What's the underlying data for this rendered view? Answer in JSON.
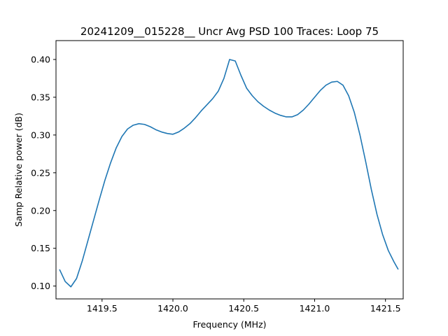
{
  "chart_data": {
    "type": "line",
    "title": "20241209__015228__  Uncr Avg PSD 100 Traces: Loop 75",
    "xlabel": "Frequency (MHz)",
    "ylabel": "Samp Relative power (dB)",
    "xlim": [
      1419.175,
      1421.625
    ],
    "ylim": [
      0.083,
      0.425
    ],
    "x_ticks": [
      1419.5,
      1420.0,
      1420.5,
      1421.0,
      1421.5
    ],
    "x_tick_labels": [
      "1419.5",
      "1420.0",
      "1420.5",
      "1421.0",
      "1421.5"
    ],
    "y_ticks": [
      0.1,
      0.15,
      0.2,
      0.25,
      0.3,
      0.35,
      0.4
    ],
    "y_tick_labels": [
      "0.10",
      "0.15",
      "0.20",
      "0.25",
      "0.30",
      "0.35",
      "0.40"
    ],
    "grid": false,
    "legend": "none",
    "line_color": "#1f77b4",
    "series": [
      {
        "x": [
          1419.2,
          1419.24,
          1419.28,
          1419.32,
          1419.36,
          1419.4,
          1419.44,
          1419.48,
          1419.52,
          1419.56,
          1419.6,
          1419.64,
          1419.68,
          1419.72,
          1419.76,
          1419.8,
          1419.84,
          1419.88,
          1419.92,
          1419.96,
          1420.0,
          1420.04,
          1420.08,
          1420.12,
          1420.16,
          1420.2,
          1420.24,
          1420.28,
          1420.32,
          1420.36,
          1420.4,
          1420.44,
          1420.48,
          1420.52,
          1420.56,
          1420.6,
          1420.64,
          1420.68,
          1420.72,
          1420.76,
          1420.8,
          1420.84,
          1420.88,
          1420.92,
          1420.96,
          1421.0,
          1421.04,
          1421.08,
          1421.12,
          1421.16,
          1421.2,
          1421.24,
          1421.28,
          1421.32,
          1421.36,
          1421.4,
          1421.44,
          1421.48,
          1421.52,
          1421.56,
          1421.59
        ],
        "y": [
          0.122,
          0.106,
          0.099,
          0.11,
          0.133,
          0.16,
          0.187,
          0.214,
          0.24,
          0.263,
          0.283,
          0.298,
          0.308,
          0.313,
          0.315,
          0.314,
          0.311,
          0.307,
          0.304,
          0.302,
          0.301,
          0.304,
          0.309,
          0.315,
          0.323,
          0.332,
          0.34,
          0.348,
          0.358,
          0.375,
          0.4,
          0.398,
          0.379,
          0.362,
          0.352,
          0.344,
          0.338,
          0.333,
          0.329,
          0.326,
          0.324,
          0.324,
          0.327,
          0.333,
          0.341,
          0.35,
          0.359,
          0.366,
          0.37,
          0.371,
          0.366,
          0.352,
          0.33,
          0.3,
          0.265,
          0.228,
          0.195,
          0.168,
          0.147,
          0.132,
          0.122
        ]
      }
    ]
  }
}
